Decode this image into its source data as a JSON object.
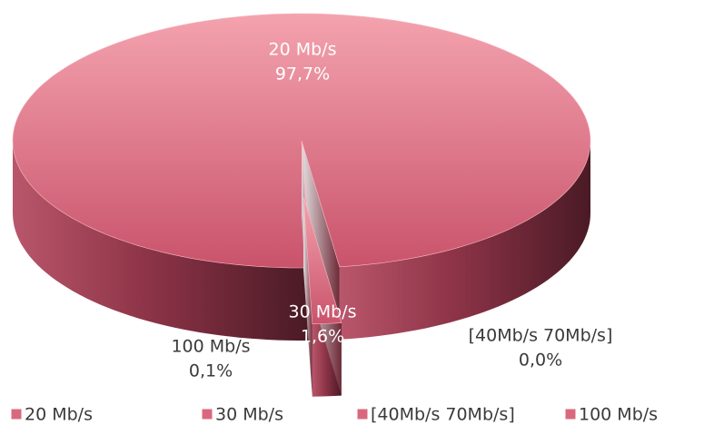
{
  "chart_data": {
    "type": "pie",
    "categories": [
      "20 Mb/s",
      "30 Mb/s",
      "[40Mb/s 70Mb/s]",
      "100 Mb/s"
    ],
    "values": [
      97.7,
      1.6,
      0.0,
      0.1
    ],
    "value_labels": [
      "97,7%",
      "1,6%",
      "0,0%",
      "0,1%"
    ],
    "color": "#d9687f"
  }
}
